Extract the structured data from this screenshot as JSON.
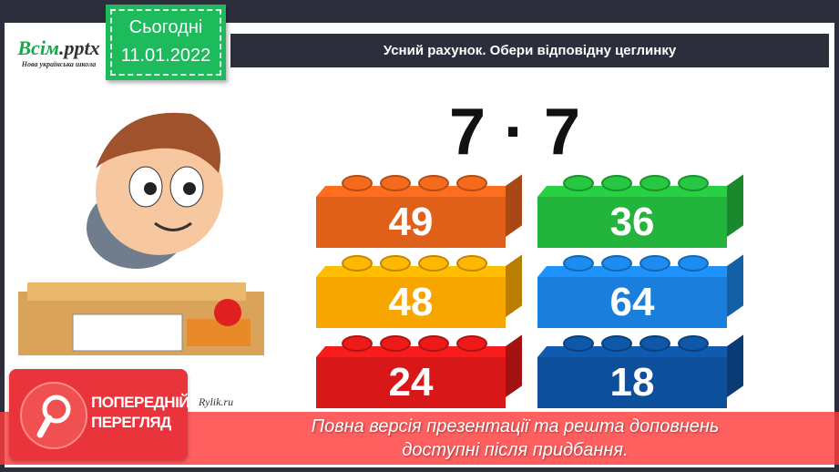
{
  "logo": {
    "brand": "Всім",
    "ext": ".pptx",
    "tagline": "Нова українська школа"
  },
  "date_badge": {
    "label": "Сьогодні",
    "date": "11.01.2022"
  },
  "header": {
    "title": "Усний рахунок. Обери відповідну цеглинку"
  },
  "expression": "7 · 7",
  "bricks": [
    {
      "value": "49",
      "color": "#e0601a"
    },
    {
      "value": "36",
      "color": "#23b53b"
    },
    {
      "value": "48",
      "color": "#f7a600"
    },
    {
      "value": "64",
      "color": "#1a7fdc"
    },
    {
      "value": "24",
      "color": "#d81818"
    },
    {
      "value": "18",
      "color": "#0d4f9a"
    }
  ],
  "preview": {
    "label_line1": "ПОПЕРЕДНІЙ",
    "label_line2": "ПЕРЕГЛЯД",
    "message_line1": "Повна версія презентації та решта доповнень",
    "message_line2": "доступні після придбання."
  },
  "watermark": "Rylik.ru"
}
